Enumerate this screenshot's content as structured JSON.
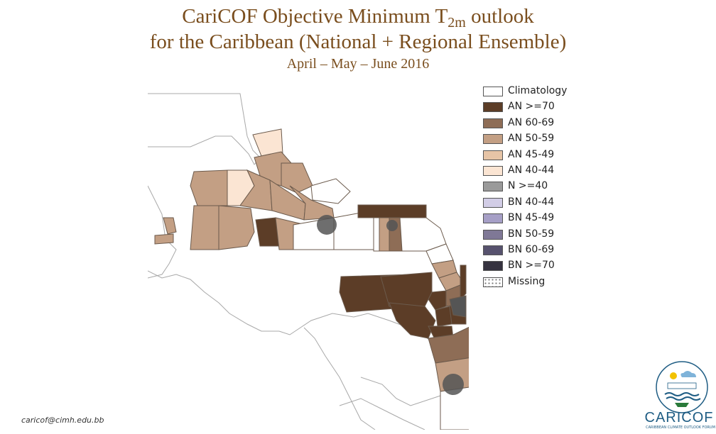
{
  "title": {
    "line1_pre": "CariCOF Objective Minimum T",
    "line1_sub": "2m",
    "line1_post": " outlook",
    "line2": "for the Caribbean (National + Regional Ensemble)",
    "subtitle": "April – May – June 2016"
  },
  "legend": {
    "items": [
      {
        "label": "Climatology",
        "color": "#ffffff"
      },
      {
        "label": "AN >=70",
        "color": "#5c3d27"
      },
      {
        "label": "AN 60-69",
        "color": "#8e6d56"
      },
      {
        "label": "AN 50-59",
        "color": "#c39f84"
      },
      {
        "label": "AN 45-49",
        "color": "#e6c4a6"
      },
      {
        "label": "AN 40-44",
        "color": "#fbe5d3"
      },
      {
        "label": "N >=40",
        "color": "#9a9a9a"
      },
      {
        "label": "BN 40-44",
        "color": "#d2cde6"
      },
      {
        "label": "BN 45-49",
        "color": "#a69fc6"
      },
      {
        "label": "BN 50-59",
        "color": "#7f7896"
      },
      {
        "label": "BN 60-69",
        "color": "#57526e"
      },
      {
        "label": "BN  >=70",
        "color": "#35323f"
      },
      {
        "label": "Missing",
        "color": "#ffffff"
      }
    ]
  },
  "footer": {
    "email": "caricof@cimh.edu.bb",
    "logo_text": "CARICOF",
    "logo_tagline": "CARIBBEAN CLIMATE OUTLOOK FORUM"
  },
  "colors": {
    "title": "#7a4e1e",
    "land_outline": "#9a9a9a",
    "logo_blue": "#1f5d84"
  }
}
